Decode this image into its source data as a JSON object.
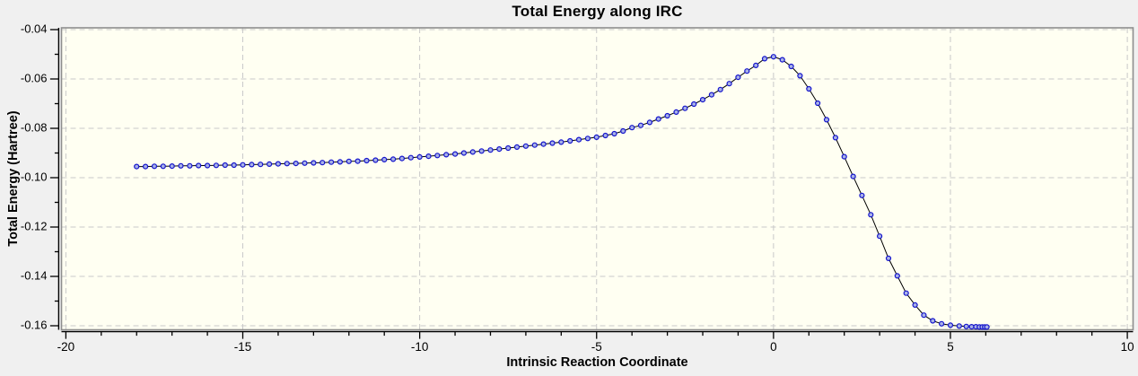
{
  "chart": {
    "title": "Total Energy along IRC",
    "x_axis_label": "Intrinsic Reaction Coordinate",
    "y_axis_label": "Total Energy (Hartree)"
  },
  "chart_data": {
    "type": "line",
    "title": "Total Energy along IRC",
    "xlabel": "Intrinsic Reaction Coordinate",
    "ylabel": "Total Energy (Hartree)",
    "xlim": [
      -20,
      10
    ],
    "ylim": [
      -0.16,
      -0.04
    ],
    "grid": {
      "style": "dashed",
      "on": "major-ticks"
    },
    "legend": "none",
    "x_ticks": {
      "values": [
        -20,
        -15,
        -10,
        -5,
        0,
        5,
        10
      ],
      "labels": [
        "-20",
        "-15",
        "-10",
        "-5",
        "0",
        "5",
        "10"
      ],
      "minor_step": 1
    },
    "y_ticks": {
      "values": [
        -0.04,
        -0.06,
        -0.08,
        -0.1,
        -0.12,
        -0.14,
        -0.16
      ],
      "labels": [
        "-0.04",
        "-0.06",
        "-0.08",
        "-0.10",
        "-0.12",
        "-0.14",
        "-0.16"
      ],
      "minor_step": 0.01
    },
    "style": {
      "figure_bg": "#f0f0f0",
      "plot_bg": "#fffff2",
      "grid_color": "#c9c9c9",
      "frame_color": "#8e8e8e",
      "axis_color": "#000000",
      "line_color": "#000000",
      "marker_edge": "#1414cc",
      "marker_fill": "#a9b2e6"
    },
    "series": [
      {
        "name": "Total Energy",
        "marker": "circle",
        "points": [
          [
            -18,
            -0.0955
          ],
          [
            -17.75,
            -0.0955
          ],
          [
            -17.5,
            -0.0954
          ],
          [
            -17.25,
            -0.0954
          ],
          [
            -17,
            -0.0953
          ],
          [
            -16.75,
            -0.0952
          ],
          [
            -16.5,
            -0.0952
          ],
          [
            -16.25,
            -0.0951
          ],
          [
            -16,
            -0.0951
          ],
          [
            -15.75,
            -0.095
          ],
          [
            -15.5,
            -0.0949
          ],
          [
            -15.25,
            -0.0949
          ],
          [
            -15,
            -0.0948
          ],
          [
            -14.75,
            -0.0947
          ],
          [
            -14.5,
            -0.0946
          ],
          [
            -14.25,
            -0.0945
          ],
          [
            -14,
            -0.0944
          ],
          [
            -13.75,
            -0.0943
          ],
          [
            -13.5,
            -0.0942
          ],
          [
            -13.25,
            -0.0941
          ],
          [
            -13,
            -0.094
          ],
          [
            -12.75,
            -0.0939
          ],
          [
            -12.5,
            -0.0937
          ],
          [
            -12.25,
            -0.0936
          ],
          [
            -12,
            -0.0934
          ],
          [
            -11.75,
            -0.0933
          ],
          [
            -11.5,
            -0.0931
          ],
          [
            -11.25,
            -0.0929
          ],
          [
            -11,
            -0.0927
          ],
          [
            -10.75,
            -0.0925
          ],
          [
            -10.5,
            -0.0922
          ],
          [
            -10.25,
            -0.0919
          ],
          [
            -10,
            -0.0916
          ],
          [
            -9.75,
            -0.0913
          ],
          [
            -9.5,
            -0.091
          ],
          [
            -9.25,
            -0.0907
          ],
          [
            -9,
            -0.0904
          ],
          [
            -8.75,
            -0.09
          ],
          [
            -8.5,
            -0.0896
          ],
          [
            -8.25,
            -0.0892
          ],
          [
            -8,
            -0.0888
          ],
          [
            -7.75,
            -0.0884
          ],
          [
            -7.5,
            -0.088
          ],
          [
            -7.25,
            -0.0876
          ],
          [
            -7,
            -0.0872
          ],
          [
            -6.75,
            -0.0868
          ],
          [
            -6.5,
            -0.0864
          ],
          [
            -6.25,
            -0.086
          ],
          [
            -6,
            -0.0856
          ],
          [
            -5.75,
            -0.0851
          ],
          [
            -5.5,
            -0.0846
          ],
          [
            -5.25,
            -0.0841
          ],
          [
            -5,
            -0.0836
          ],
          [
            -4.75,
            -0.0829
          ],
          [
            -4.5,
            -0.0822
          ],
          [
            -4.25,
            -0.0811
          ],
          [
            -4,
            -0.0797
          ],
          [
            -3.75,
            -0.0788
          ],
          [
            -3.5,
            -0.0776
          ],
          [
            -3.25,
            -0.0762
          ],
          [
            -3,
            -0.0749
          ],
          [
            -2.75,
            -0.0734
          ],
          [
            -2.5,
            -0.0719
          ],
          [
            -2.25,
            -0.0702
          ],
          [
            -2,
            -0.0684
          ],
          [
            -1.75,
            -0.0664
          ],
          [
            -1.5,
            -0.0643
          ],
          [
            -1.25,
            -0.0619
          ],
          [
            -1,
            -0.0593
          ],
          [
            -0.75,
            -0.0568
          ],
          [
            -0.5,
            -0.0545
          ],
          [
            -0.25,
            -0.0518
          ],
          [
            0,
            -0.051
          ],
          [
            0.25,
            -0.0522
          ],
          [
            0.5,
            -0.0549
          ],
          [
            0.75,
            -0.0587
          ],
          [
            1,
            -0.064
          ],
          [
            1.25,
            -0.0698
          ],
          [
            1.5,
            -0.0765
          ],
          [
            1.75,
            -0.0838
          ],
          [
            2,
            -0.0915
          ],
          [
            2.25,
            -0.0995
          ],
          [
            2.5,
            -0.1072
          ],
          [
            2.75,
            -0.115
          ],
          [
            3,
            -0.1237
          ],
          [
            3.25,
            -0.1327
          ],
          [
            3.5,
            -0.1398
          ],
          [
            3.75,
            -0.1468
          ],
          [
            4,
            -0.1516
          ],
          [
            4.25,
            -0.1557
          ],
          [
            4.5,
            -0.158
          ],
          [
            4.75,
            -0.1592
          ],
          [
            5,
            -0.1598
          ],
          [
            5.25,
            -0.1601
          ],
          [
            5.45,
            -0.1603
          ],
          [
            5.6,
            -0.1604
          ],
          [
            5.72,
            -0.1604
          ],
          [
            5.82,
            -0.1605
          ],
          [
            5.9,
            -0.1605
          ],
          [
            5.97,
            -0.1605
          ],
          [
            6.03,
            -0.1605
          ]
        ]
      }
    ]
  }
}
